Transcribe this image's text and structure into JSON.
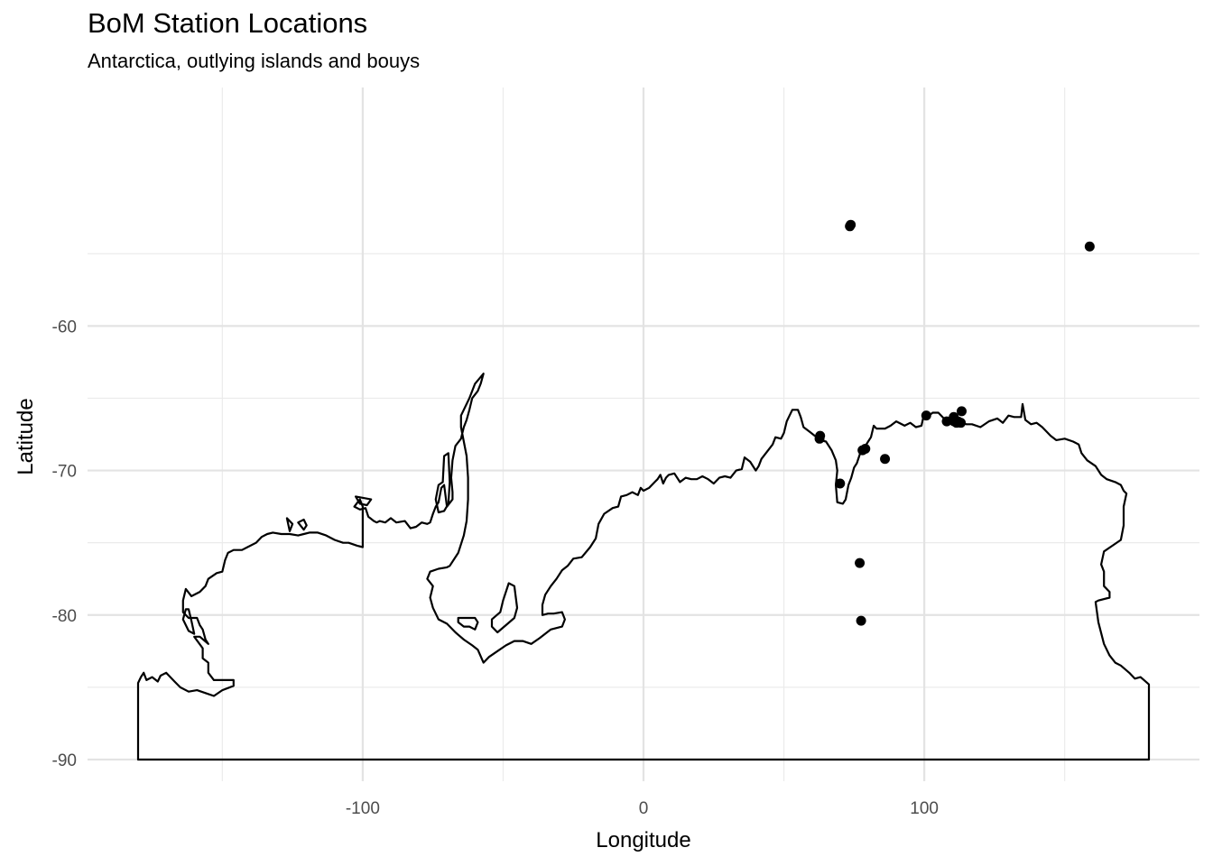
{
  "chart_data": {
    "type": "scatter",
    "title": "BoM Station Locations",
    "subtitle": "Antarctica, outlying islands and bouys",
    "xlabel": "Longitude",
    "ylabel": "Latitude",
    "xlim": [
      -198,
      198
    ],
    "ylim": [
      -91.5,
      -43.5
    ],
    "x_ticks": [
      -100,
      0,
      100
    ],
    "x_tick_labels": [
      "-100",
      "0",
      "100"
    ],
    "y_ticks": [
      -60,
      -70,
      -80,
      -90
    ],
    "y_tick_labels": [
      "-60",
      "-70",
      "-80",
      "-90"
    ],
    "grid": true,
    "legend": "none",
    "point_color": "#000000",
    "coastline_color": "#000000",
    "points": [
      {
        "x": 73.8,
        "y": -53.0
      },
      {
        "x": 73.5,
        "y": -53.1
      },
      {
        "x": 158.9,
        "y": -54.5
      },
      {
        "x": 62.9,
        "y": -67.6
      },
      {
        "x": 62.7,
        "y": -67.8
      },
      {
        "x": 100.7,
        "y": -66.2
      },
      {
        "x": 108.0,
        "y": -66.6
      },
      {
        "x": 110.5,
        "y": -66.3
      },
      {
        "x": 110.6,
        "y": -66.6
      },
      {
        "x": 111.5,
        "y": -66.7
      },
      {
        "x": 112.0,
        "y": -66.6
      },
      {
        "x": 113.0,
        "y": -66.7
      },
      {
        "x": 113.3,
        "y": -65.9
      },
      {
        "x": 78.0,
        "y": -68.6
      },
      {
        "x": 79.0,
        "y": -68.5
      },
      {
        "x": 86.0,
        "y": -69.2
      },
      {
        "x": 70.0,
        "y": -70.9
      },
      {
        "x": 77.0,
        "y": -76.4
      },
      {
        "x": 77.5,
        "y": -80.4
      }
    ],
    "coastline": [
      [
        [
          -180,
          -90
        ],
        [
          180,
          -90
        ],
        [
          180,
          -84.8
        ],
        [
          177,
          -84.3
        ],
        [
          175,
          -84.4
        ],
        [
          173,
          -84.0
        ],
        [
          170,
          -83.5
        ],
        [
          168,
          -83.3
        ],
        [
          166,
          -82.8
        ],
        [
          164,
          -82.0
        ],
        [
          162,
          -80.5
        ],
        [
          161,
          -79.1
        ],
        [
          162,
          -79.0
        ],
        [
          166,
          -78.8
        ],
        [
          166,
          -78.4
        ],
        [
          164,
          -78.0
        ],
        [
          164,
          -77.0
        ],
        [
          163,
          -76.5
        ],
        [
          164,
          -75.6
        ],
        [
          167,
          -75.2
        ],
        [
          170,
          -74.8
        ],
        [
          171,
          -73.8
        ],
        [
          171,
          -72.5
        ],
        [
          172,
          -71.6
        ],
        [
          171,
          -71.4
        ],
        [
          170,
          -71.0
        ],
        [
          168,
          -70.8
        ],
        [
          165,
          -70.6
        ],
        [
          163,
          -70.3
        ],
        [
          161,
          -69.7
        ],
        [
          158,
          -69.3
        ],
        [
          156,
          -68.8
        ],
        [
          155,
          -68.2
        ],
        [
          153,
          -68.0
        ],
        [
          150,
          -67.8
        ],
        [
          147,
          -67.9
        ],
        [
          145,
          -67.6
        ],
        [
          142,
          -67.0
        ],
        [
          140,
          -66.7
        ],
        [
          138,
          -66.8
        ],
        [
          136,
          -66.5
        ],
        [
          135,
          -65.4
        ],
        [
          134.5,
          -66.3
        ],
        [
          132,
          -66.3
        ],
        [
          130,
          -66.2
        ],
        [
          128,
          -66.7
        ],
        [
          126,
          -66.4
        ],
        [
          123,
          -66.6
        ],
        [
          120,
          -67.0
        ],
        [
          117,
          -66.8
        ],
        [
          115,
          -66.8
        ],
        [
          113,
          -66.7
        ],
        [
          112,
          -66.4
        ],
        [
          110,
          -66.4
        ],
        [
          108,
          -66.6
        ],
        [
          105,
          -66.0
        ],
        [
          103,
          -66.0
        ],
        [
          101,
          -66.3
        ],
        [
          100,
          -66.0
        ],
        [
          99,
          -66.9
        ],
        [
          97,
          -67.0
        ],
        [
          95,
          -66.7
        ],
        [
          93,
          -66.9
        ],
        [
          90,
          -66.6
        ],
        [
          88,
          -66.9
        ],
        [
          86,
          -67.1
        ],
        [
          85,
          -67.1
        ],
        [
          83,
          -67.1
        ],
        [
          82,
          -66.9
        ],
        [
          81,
          -67.7
        ],
        [
          80,
          -68.0
        ],
        [
          79,
          -68.3
        ],
        [
          78,
          -68.5
        ],
        [
          77,
          -68.9
        ],
        [
          76,
          -69.5
        ],
        [
          75,
          -69.8
        ],
        [
          74,
          -70.5
        ],
        [
          73,
          -71.0
        ],
        [
          72,
          -72.0
        ],
        [
          71,
          -72.3
        ],
        [
          69,
          -72.2
        ],
        [
          68.5,
          -71.0
        ],
        [
          69,
          -70.0
        ],
        [
          68.5,
          -69.3
        ],
        [
          67,
          -68.6
        ],
        [
          65,
          -68.0
        ],
        [
          63,
          -67.9
        ],
        [
          61,
          -67.6
        ],
        [
          59,
          -67.3
        ],
        [
          57,
          -67.0
        ],
        [
          56,
          -66.3
        ],
        [
          55,
          -65.8
        ],
        [
          53,
          -65.8
        ],
        [
          52,
          -66.2
        ],
        [
          51,
          -66.6
        ],
        [
          50,
          -67.4
        ],
        [
          49,
          -67.8
        ],
        [
          47,
          -67.7
        ],
        [
          46,
          -68.2
        ],
        [
          44,
          -68.7
        ],
        [
          42,
          -69.2
        ],
        [
          41,
          -69.7
        ],
        [
          40,
          -70.0
        ],
        [
          38,
          -69.4
        ],
        [
          36,
          -69.1
        ],
        [
          35,
          -69.9
        ],
        [
          33,
          -70.0
        ],
        [
          31,
          -70.5
        ],
        [
          29,
          -70.4
        ],
        [
          27,
          -70.5
        ],
        [
          25,
          -70.9
        ],
        [
          23,
          -70.6
        ],
        [
          21,
          -70.4
        ],
        [
          19,
          -70.6
        ],
        [
          17,
          -70.6
        ],
        [
          15,
          -70.5
        ],
        [
          13,
          -70.8
        ],
        [
          11,
          -70.2
        ],
        [
          9,
          -70.3
        ],
        [
          8,
          -70.5
        ],
        [
          7,
          -70.9
        ],
        [
          6,
          -70.3
        ],
        [
          5,
          -70.6
        ],
        [
          4,
          -70.8
        ],
        [
          2,
          -71.2
        ],
        [
          0,
          -71.4
        ],
        [
          -1,
          -71.2
        ],
        [
          -2,
          -71.7
        ],
        [
          -4,
          -71.5
        ],
        [
          -6,
          -71.7
        ],
        [
          -8,
          -71.8
        ],
        [
          -9,
          -72.5
        ],
        [
          -11,
          -72.6
        ],
        [
          -14,
          -73.0
        ],
        [
          -16,
          -73.7
        ],
        [
          -17,
          -74.7
        ],
        [
          -19,
          -75.3
        ],
        [
          -22,
          -76.0
        ],
        [
          -25,
          -76.1
        ],
        [
          -27,
          -76.6
        ],
        [
          -29,
          -76.9
        ],
        [
          -31,
          -77.5
        ],
        [
          -33,
          -78.0
        ],
        [
          -35,
          -78.6
        ],
        [
          -36,
          -79.3
        ],
        [
          -36,
          -80.0
        ],
        [
          -34,
          -79.9
        ],
        [
          -32,
          -79.9
        ],
        [
          -29,
          -79.8
        ],
        [
          -28,
          -80.3
        ],
        [
          -29,
          -80.8
        ],
        [
          -33,
          -81.0
        ],
        [
          -37,
          -81.6
        ],
        [
          -40,
          -82.0
        ],
        [
          -43,
          -81.8
        ],
        [
          -46,
          -81.8
        ],
        [
          -49,
          -82.1
        ],
        [
          -52,
          -82.5
        ],
        [
          -55,
          -82.9
        ],
        [
          -57,
          -83.3
        ],
        [
          -59,
          -82.4
        ],
        [
          -61,
          -82.1
        ],
        [
          -64,
          -81.7
        ],
        [
          -67,
          -81.2
        ],
        [
          -70,
          -80.6
        ],
        [
          -73,
          -80.3
        ],
        [
          -75,
          -79.5
        ],
        [
          -76,
          -78.8
        ],
        [
          -75,
          -78.0
        ],
        [
          -77,
          -77.5
        ],
        [
          -76,
          -77.0
        ],
        [
          -73,
          -76.8
        ],
        [
          -70,
          -76.7
        ],
        [
          -69,
          -76.6
        ],
        [
          -66,
          -75.7
        ],
        [
          -64,
          -74.5
        ],
        [
          -63,
          -73.5
        ],
        [
          -62.5,
          -72.0
        ],
        [
          -62.5,
          -70.5
        ],
        [
          -63,
          -69.0
        ],
        [
          -64,
          -68.0
        ],
        [
          -65,
          -67.0
        ],
        [
          -65,
          -66.2
        ],
        [
          -62,
          -65.0
        ],
        [
          -60,
          -64.0
        ],
        [
          -57,
          -63.3
        ],
        [
          -58,
          -64.0
        ],
        [
          -59,
          -64.5
        ],
        [
          -61,
          -65.0
        ],
        [
          -62,
          -65.8
        ],
        [
          -63,
          -66.5
        ],
        [
          -64,
          -67.0
        ],
        [
          -65,
          -67.8
        ],
        [
          -67,
          -68.3
        ],
        [
          -68,
          -69.3
        ],
        [
          -68.5,
          -70.5
        ],
        [
          -68,
          -71.5
        ],
        [
          -68,
          -72.0
        ],
        [
          -70,
          -72.5
        ],
        [
          -71,
          -71.0
        ],
        [
          -72,
          -71.2
        ],
        [
          -73,
          -72.2
        ],
        [
          -74,
          -72.5
        ],
        [
          -75,
          -73.0
        ],
        [
          -76,
          -73.6
        ],
        [
          -77,
          -73.7
        ],
        [
          -79,
          -73.6
        ],
        [
          -81,
          -73.9
        ],
        [
          -83,
          -74.0
        ],
        [
          -85,
          -73.5
        ],
        [
          -88,
          -73.6
        ],
        [
          -90,
          -73.3
        ],
        [
          -92,
          -73.6
        ],
        [
          -94,
          -73.5
        ],
        [
          -95,
          -73.6
        ],
        [
          -96,
          -73.5
        ],
        [
          -98,
          -73.2
        ],
        [
          -99,
          -72.6
        ],
        [
          -101,
          -72.7
        ],
        [
          -103,
          -72.5
        ],
        [
          -101,
          -72.0
        ],
        [
          -100,
          -72.5
        ],
        [
          -100,
          -73.8
        ],
        [
          -100,
          -75.3
        ],
        [
          -102,
          -75.2
        ],
        [
          -105,
          -75.0
        ],
        [
          -107,
          -75.0
        ],
        [
          -110,
          -74.8
        ],
        [
          -113,
          -74.5
        ],
        [
          -116,
          -74.3
        ],
        [
          -119,
          -74.3
        ],
        [
          -121,
          -74.4
        ],
        [
          -123,
          -74.5
        ],
        [
          -126,
          -74.4
        ],
        [
          -129,
          -74.4
        ],
        [
          -132,
          -74.3
        ],
        [
          -134,
          -74.4
        ],
        [
          -136,
          -74.6
        ],
        [
          -138,
          -75.0
        ],
        [
          -141,
          -75.3
        ],
        [
          -143,
          -75.5
        ],
        [
          -146,
          -75.5
        ],
        [
          -148,
          -75.7
        ],
        [
          -149,
          -76.2
        ],
        [
          -150,
          -77.0
        ],
        [
          -152,
          -77.1
        ],
        [
          -155,
          -77.5
        ],
        [
          -156,
          -78.0
        ],
        [
          -158,
          -78.4
        ],
        [
          -161,
          -78.7
        ],
        [
          -163,
          -78.2
        ],
        [
          -164,
          -79.0
        ],
        [
          -164,
          -79.8
        ],
        [
          -162,
          -80.2
        ],
        [
          -159,
          -80.2
        ],
        [
          -158,
          -80.7
        ],
        [
          -157,
          -81.0
        ],
        [
          -156,
          -81.7
        ],
        [
          -155,
          -82.0
        ],
        [
          -158,
          -81.5
        ],
        [
          -160,
          -81.5
        ],
        [
          -157,
          -82.3
        ],
        [
          -157,
          -83.0
        ],
        [
          -155,
          -83.3
        ],
        [
          -155,
          -84.0
        ],
        [
          -153,
          -84.5
        ],
        [
          -149,
          -84.5
        ],
        [
          -146,
          -84.5
        ],
        [
          -146,
          -84.9
        ],
        [
          -150,
          -85.2
        ],
        [
          -153,
          -85.6
        ],
        [
          -156,
          -85.4
        ],
        [
          -159,
          -85.2
        ],
        [
          -162,
          -85.3
        ],
        [
          -165,
          -85.0
        ],
        [
          -167,
          -84.6
        ],
        [
          -169,
          -84.2
        ],
        [
          -170,
          -84.0
        ],
        [
          -172,
          -84.2
        ],
        [
          -173,
          -84.6
        ],
        [
          -175,
          -84.3
        ],
        [
          -177,
          -84.5
        ],
        [
          -178,
          -84.0
        ],
        [
          -179,
          -84.3
        ],
        [
          -180,
          -84.7
        ],
        [
          -180,
          -90
        ]
      ],
      [
        [
          -163,
          -79.6
        ],
        [
          -164,
          -80.3
        ],
        [
          -162,
          -81.1
        ],
        [
          -160,
          -81.3
        ],
        [
          -161,
          -80.4
        ],
        [
          -162,
          -79.6
        ],
        [
          -163,
          -79.6
        ]
      ],
      [
        [
          -69.5,
          -68.8
        ],
        [
          -71,
          -69.0
        ],
        [
          -71.5,
          -70.8
        ],
        [
          -73,
          -71.0
        ],
        [
          -74,
          -72.0
        ],
        [
          -73,
          -72.9
        ],
        [
          -71,
          -72.8
        ],
        [
          -69.5,
          -72.3
        ],
        [
          -69,
          -70.8
        ],
        [
          -69.5,
          -68.8
        ]
      ],
      [
        [
          -48,
          -77.8
        ],
        [
          -46,
          -78.0
        ],
        [
          -45,
          -79.5
        ],
        [
          -46,
          -80.2
        ],
        [
          -49,
          -80.7
        ],
        [
          -52,
          -81.2
        ],
        [
          -54,
          -80.8
        ],
        [
          -54,
          -80.3
        ],
        [
          -51,
          -79.8
        ],
        [
          -50,
          -79.0
        ],
        [
          -48,
          -77.8
        ]
      ],
      [
        [
          -66,
          -80.2
        ],
        [
          -60,
          -80.2
        ],
        [
          -59,
          -80.5
        ],
        [
          -60,
          -81.0
        ],
        [
          -62,
          -80.8
        ],
        [
          -64,
          -80.8
        ],
        [
          -66,
          -80.5
        ],
        [
          -66,
          -80.2
        ]
      ],
      [
        [
          -102.5,
          -71.8
        ],
        [
          -97,
          -72.0
        ],
        [
          -98.5,
          -72.4
        ],
        [
          -101,
          -72.3
        ],
        [
          -102.5,
          -71.8
        ]
      ],
      [
        [
          -127,
          -73.3
        ],
        [
          -125,
          -73.7
        ],
        [
          -126,
          -74.2
        ],
        [
          -127,
          -73.3
        ]
      ],
      [
        [
          -123,
          -73.6
        ],
        [
          -121,
          -73.4
        ],
        [
          -120,
          -73.8
        ],
        [
          -121,
          -74.1
        ],
        [
          -123,
          -73.6
        ]
      ]
    ]
  }
}
